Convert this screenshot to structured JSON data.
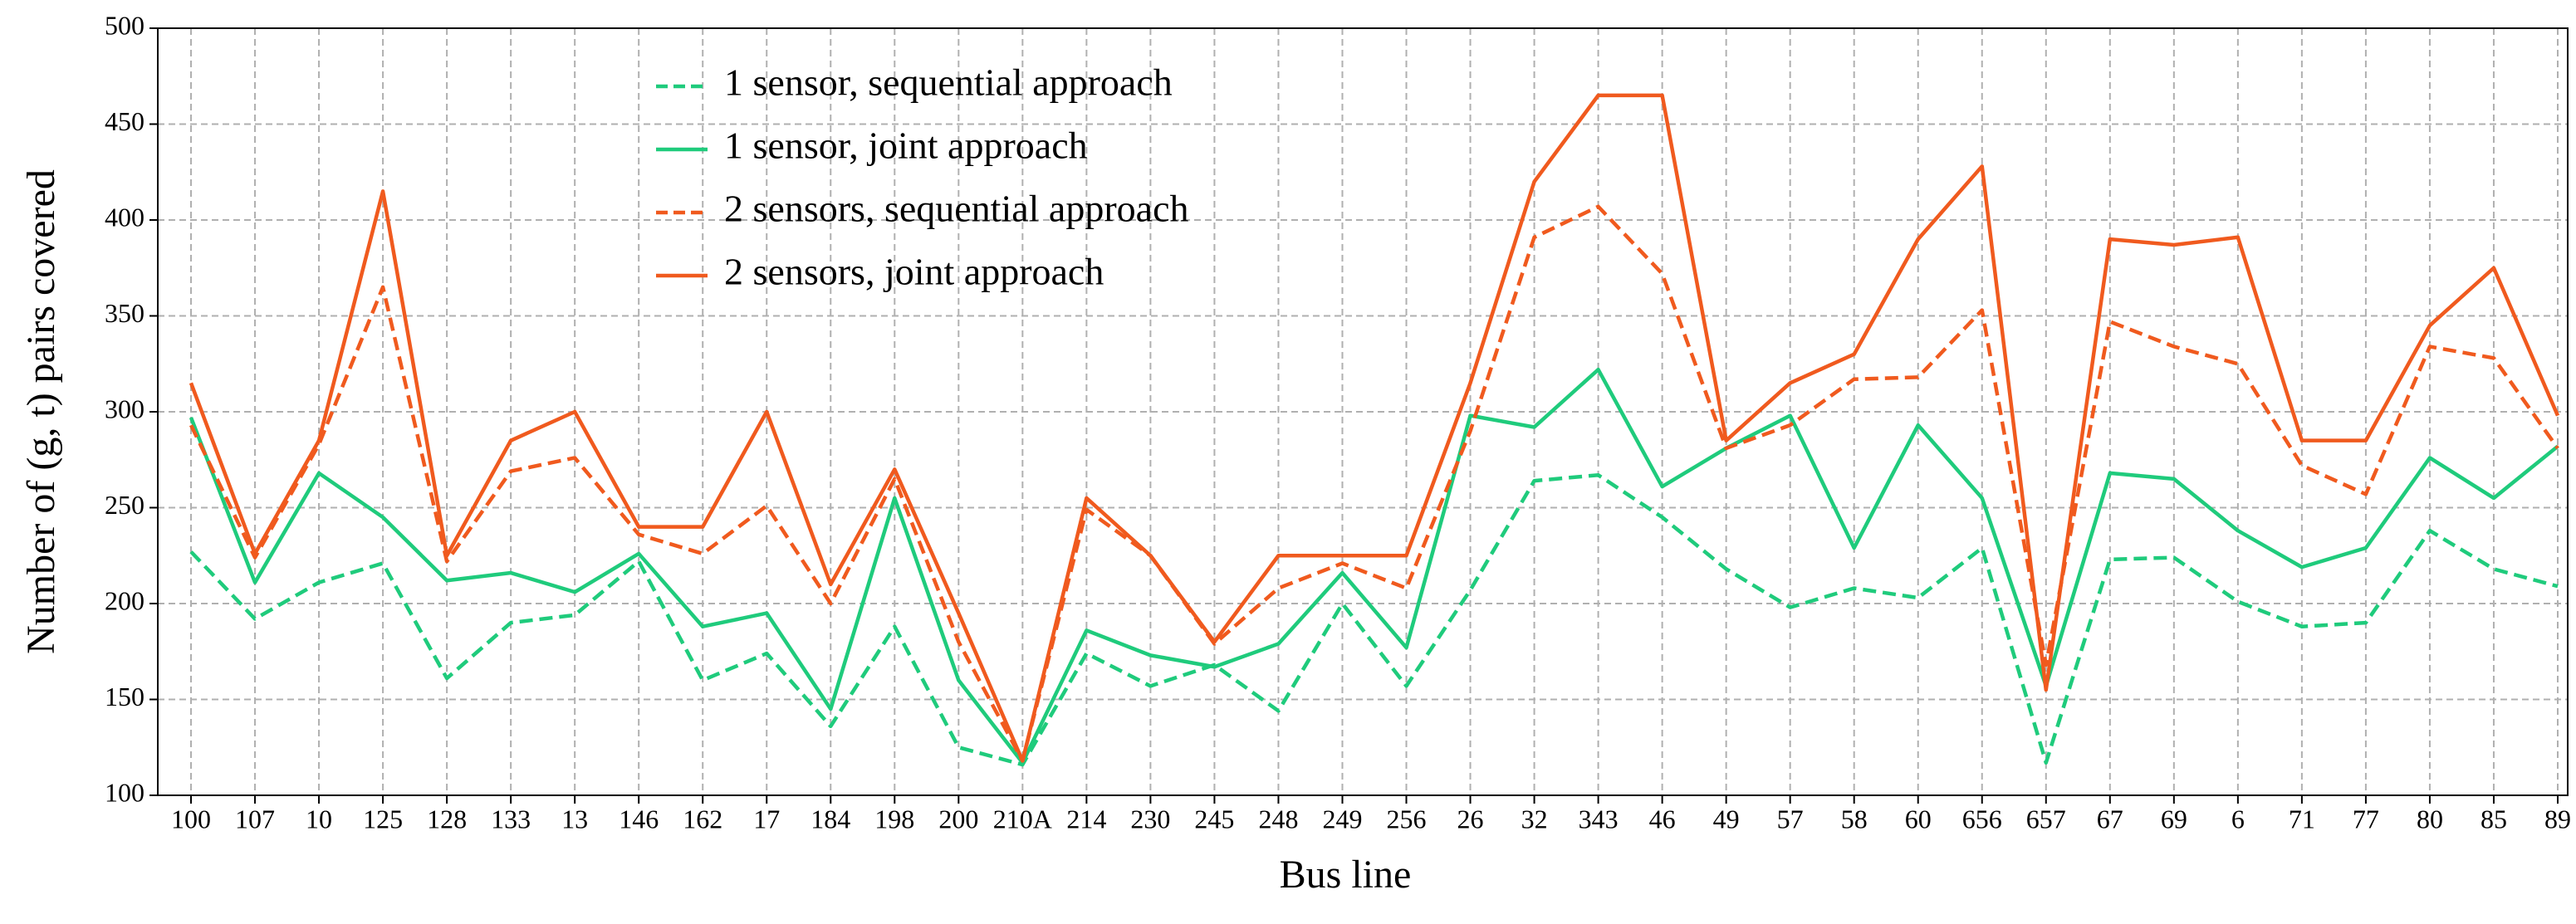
{
  "chart_data": {
    "type": "line",
    "x_label": "Bus line",
    "y_label": "Number of (g, t) pairs covered",
    "categories": [
      "100",
      "107",
      "10",
      "125",
      "128",
      "133",
      "13",
      "146",
      "162",
      "17",
      "184",
      "198",
      "200",
      "210A",
      "214",
      "230",
      "245",
      "248",
      "249",
      "256",
      "26",
      "32",
      "343",
      "46",
      "49",
      "57",
      "58",
      "60",
      "656",
      "657",
      "67",
      "69",
      "6",
      "71",
      "77",
      "80",
      "85",
      "89"
    ],
    "ylim": [
      100,
      500
    ],
    "yticks": [
      100,
      150,
      200,
      250,
      300,
      350,
      400,
      450,
      500
    ],
    "grid": true,
    "legend": "upper left",
    "series": [
      {
        "name": "1 sensor, sequential approach",
        "color": "#1fcb7c",
        "dash": true,
        "values": [
          227,
          192,
          211,
          221,
          161,
          190,
          194,
          222,
          160,
          174,
          136,
          188,
          125,
          116,
          174,
          157,
          168,
          144,
          200,
          157,
          207,
          264,
          267,
          245,
          218,
          198,
          208,
          203,
          229,
          117,
          223,
          224,
          201,
          188,
          190,
          238,
          218,
          209
        ]
      },
      {
        "name": "1 sensor, joint approach",
        "color": "#1fcb7c",
        "dash": false,
        "values": [
          297,
          211,
          268,
          245,
          212,
          216,
          206,
          226,
          188,
          195,
          145,
          255,
          160,
          117,
          186,
          173,
          167,
          179,
          216,
          177,
          298,
          292,
          322,
          261,
          281,
          298,
          229,
          293,
          255,
          157,
          268,
          265,
          238,
          219,
          229,
          276,
          255,
          282
        ]
      },
      {
        "name": "2 sensors, sequential approach",
        "color": "#f05a1e",
        "dash": true,
        "values": [
          293,
          224,
          283,
          365,
          222,
          269,
          276,
          236,
          226,
          251,
          200,
          265,
          180,
          118,
          249,
          225,
          179,
          208,
          221,
          208,
          290,
          391,
          407,
          372,
          281,
          293,
          317,
          318,
          353,
          168,
          347,
          334,
          325,
          272,
          257,
          334,
          328,
          281
        ]
      },
      {
        "name": "2 sensors, joint approach",
        "color": "#f05a1e",
        "dash": false,
        "values": [
          315,
          226,
          285,
          415,
          225,
          285,
          300,
          240,
          240,
          300,
          210,
          270,
          195,
          118,
          255,
          225,
          180,
          225,
          225,
          225,
          315,
          420,
          465,
          465,
          285,
          315,
          330,
          390,
          428,
          155,
          390,
          387,
          391,
          285,
          285,
          345,
          375,
          298
        ]
      }
    ]
  }
}
